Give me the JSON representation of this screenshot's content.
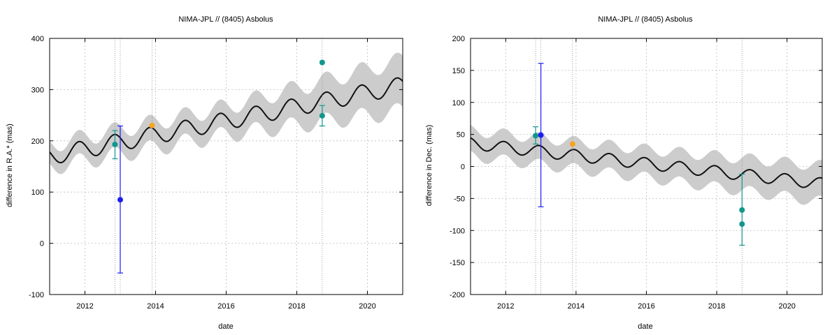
{
  "colors": {
    "band": "#cccccc",
    "fit_line": "#111111",
    "grid": "#bdbdbd",
    "vline": "#8a8a8a",
    "teal": "#12968d",
    "blue": "#1d1df0",
    "orange": "#f5a623"
  },
  "chart_data": [
    {
      "type": "line",
      "title": "NIMA-JPL // (8405) Asbolus",
      "xlabel": "date",
      "ylabel": "difference in R.A.* (mas)",
      "xlim": [
        2011.0,
        2021.0
      ],
      "ylim": [
        -100,
        400
      ],
      "x_ticks": [
        2012,
        2014,
        2016,
        2018,
        2020
      ],
      "x_tick_labels": [
        "2012",
        "2014",
        "2016",
        "2018",
        "2020"
      ],
      "y_ticks": [
        -100,
        0,
        100,
        200,
        300,
        400
      ],
      "y_tick_labels": [
        "-100",
        "0",
        "100",
        "200",
        "300",
        "400"
      ],
      "grid": true,
      "model": {
        "trend": {
          "x": [
            2011.0,
            2021.0
          ],
          "y": [
            170,
            308
          ]
        },
        "amplitude": 17,
        "period_years": 1.0,
        "phase_year_of_max": 2011.83,
        "uncertainty_band": {
          "x": [
            2011.0,
            2016.0,
            2021.0
          ],
          "half_width": [
            22,
            27,
            50
          ]
        }
      },
      "vertical_lines_x": [
        2012.85,
        2013.0,
        2013.9,
        2018.72
      ],
      "points": [
        {
          "x": 2012.85,
          "y": 193,
          "err_low": 165,
          "err_high": 220,
          "color": "teal"
        },
        {
          "x": 2013.0,
          "y": 85,
          "err_low": -58,
          "err_high": 229,
          "color": "blue"
        },
        {
          "x": 2013.9,
          "y": 230,
          "color": "orange"
        },
        {
          "x": 2018.72,
          "y": 353,
          "color": "teal"
        },
        {
          "x": 2018.72,
          "y": 249,
          "err_low": 229,
          "err_high": 269,
          "color": "teal"
        }
      ]
    },
    {
      "type": "line",
      "title": "NIMA-JPL // (8405) Asbolus",
      "xlabel": "date",
      "ylabel": "difference in Dec. (mas)",
      "xlim": [
        2011.0,
        2021.0
      ],
      "ylim": [
        -200,
        200
      ],
      "x_ticks": [
        2012,
        2014,
        2016,
        2018,
        2020
      ],
      "x_tick_labels": [
        "2012",
        "2014",
        "2016",
        "2018",
        "2020"
      ],
      "y_ticks": [
        -200,
        -150,
        -100,
        -50,
        0,
        50,
        100,
        150,
        200
      ],
      "y_tick_labels": [
        "-200",
        "-150",
        "-100",
        "-50",
        "0",
        "50",
        "100",
        "150",
        "200"
      ],
      "grid": true,
      "model": {
        "trend": {
          "x": [
            2011.0,
            2021.0
          ],
          "y": [
            36,
            -27
          ]
        },
        "amplitude": 9,
        "period_years": 1.0,
        "phase_year_of_max": 2011.95,
        "uncertainty_band": {
          "x": [
            2011.0,
            2016.0,
            2021.0
          ],
          "half_width": [
            20,
            22,
            28
          ]
        }
      },
      "vertical_lines_x": [
        2012.85,
        2013.0,
        2013.9,
        2018.72
      ],
      "points": [
        {
          "x": 2012.85,
          "y": 48,
          "err_low": 35,
          "err_high": 62,
          "color": "teal"
        },
        {
          "x": 2013.0,
          "y": 49,
          "err_low": -63,
          "err_high": 161,
          "color": "blue"
        },
        {
          "x": 2013.9,
          "y": 35,
          "color": "orange"
        },
        {
          "x": 2018.72,
          "y": -68,
          "err_low": -123,
          "err_high": -12,
          "color": "teal"
        },
        {
          "x": 2018.72,
          "y": -90,
          "color": "teal"
        }
      ]
    }
  ]
}
